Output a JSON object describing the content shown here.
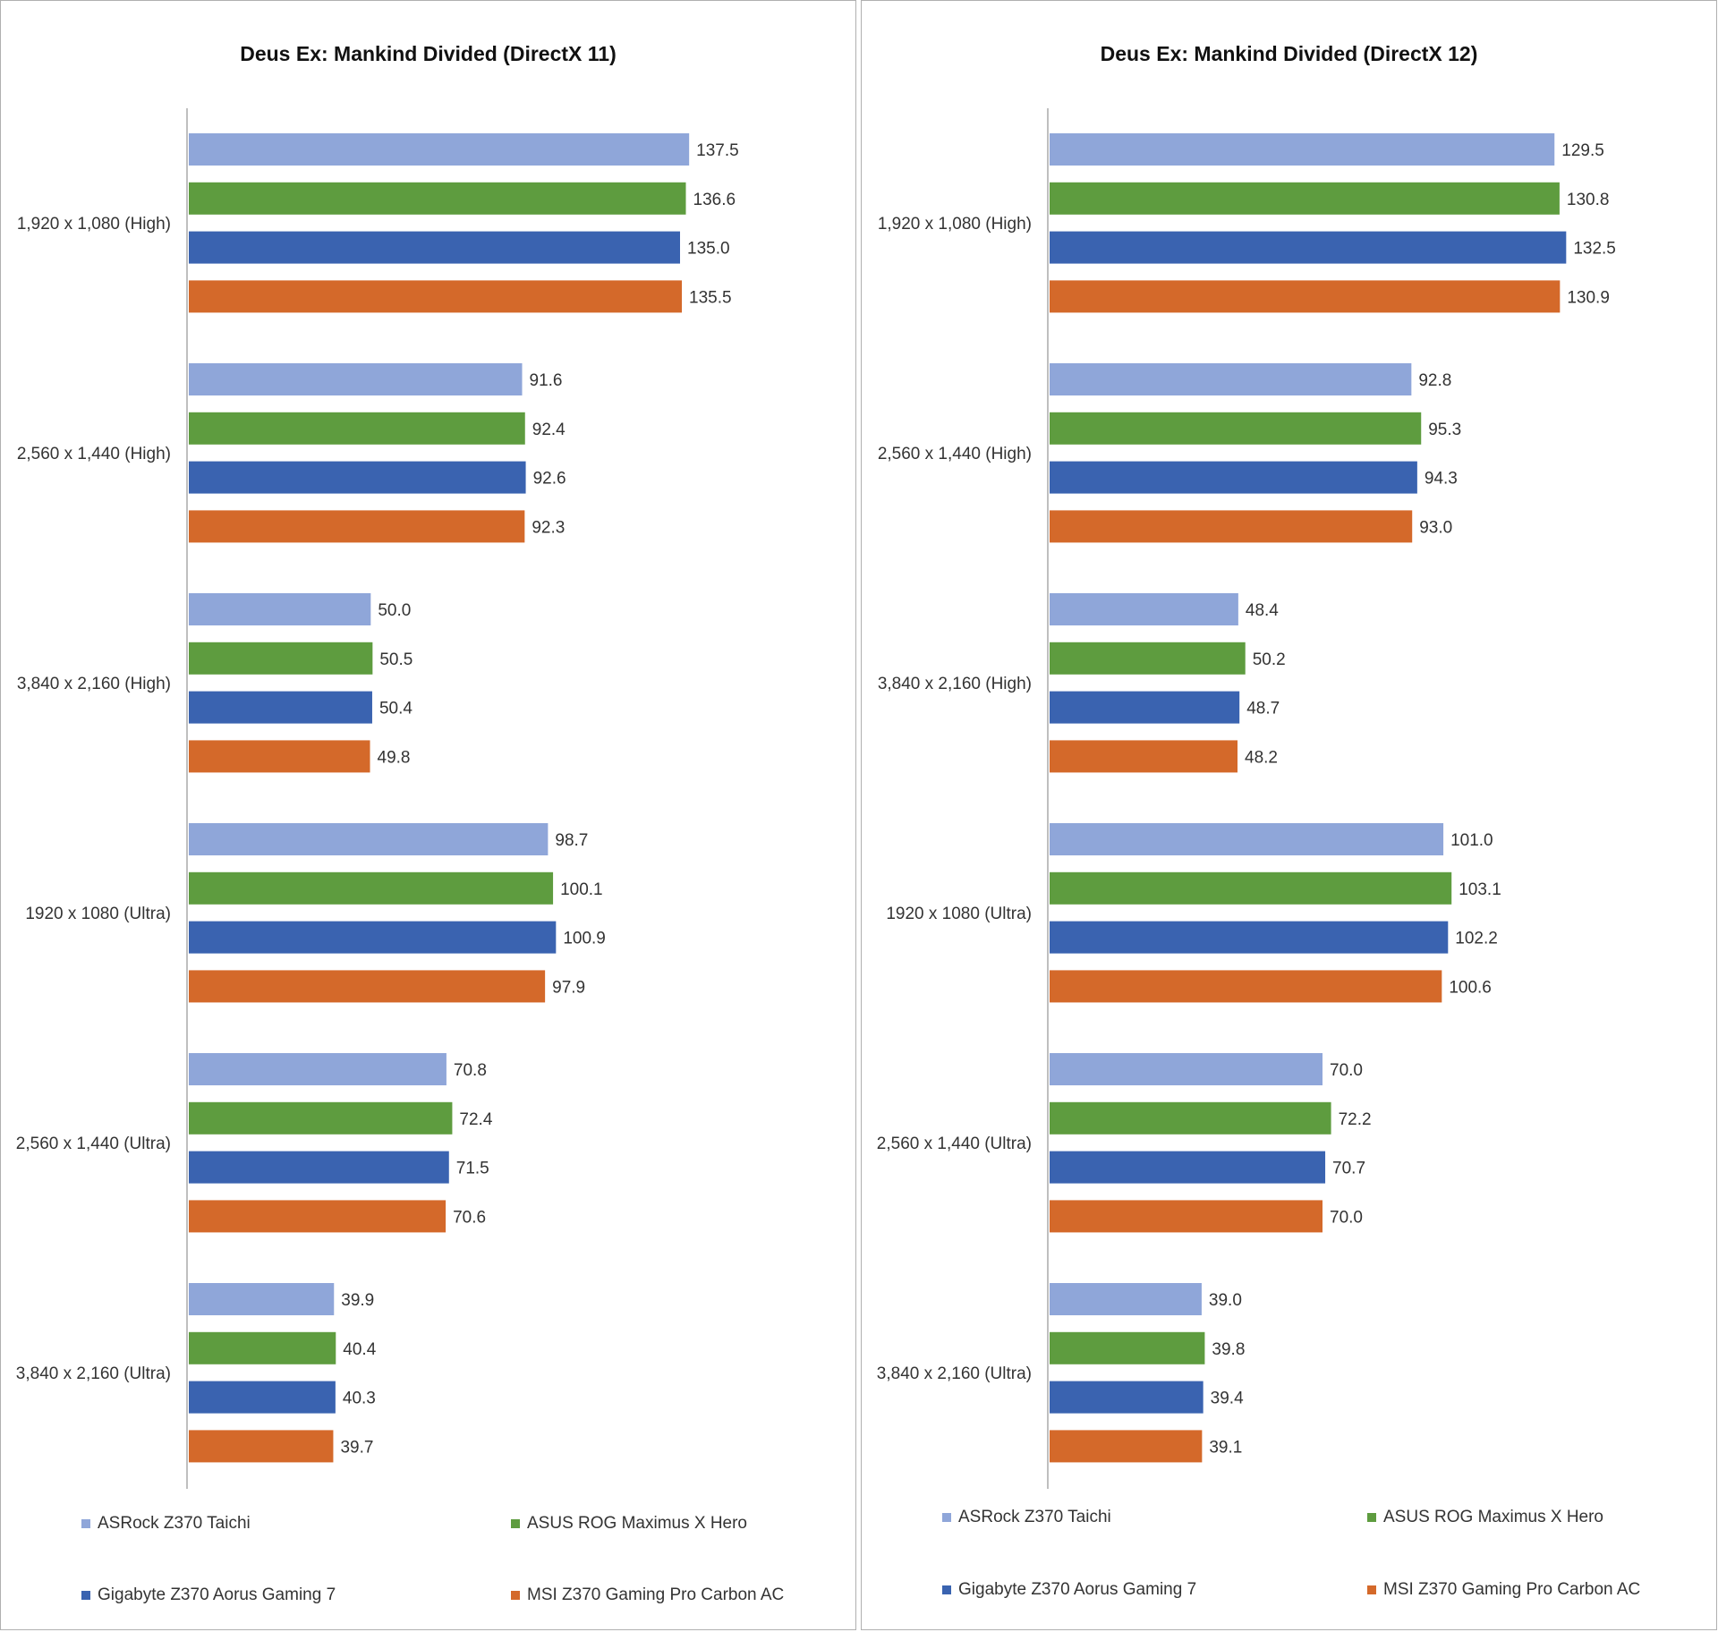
{
  "chart_data": [
    {
      "type": "bar",
      "orientation": "horizontal",
      "title": "Deus Ex: Mankind Divided (DirectX 11)",
      "categories": [
        "1,920 x 1,080 (High)",
        "2,560 x 1,440 (High)",
        "3,840 x 2,160 (High)",
        "1920 x 1080 (Ultra)",
        "2,560 x 1,440 (Ultra)",
        "3,840 x 2,160 (Ultra)"
      ],
      "series": [
        {
          "name": "ASRock Z370 Taichi",
          "color": "#8FA6D9",
          "values": [
            137.5,
            91.6,
            50.0,
            98.7,
            70.8,
            39.9
          ]
        },
        {
          "name": "ASUS ROG Maximus X Hero",
          "color": "#5E9C3F",
          "values": [
            136.6,
            92.4,
            50.5,
            100.1,
            72.4,
            40.4
          ]
        },
        {
          "name": "Gigabyte Z370 Aorus Gaming 7",
          "color": "#3A63B0",
          "values": [
            135.0,
            92.6,
            50.4,
            100.9,
            71.5,
            40.3
          ]
        },
        {
          "name": "MSI Z370 Gaming Pro Carbon AC",
          "color": "#D4692A",
          "values": [
            135.5,
            92.3,
            49.8,
            97.9,
            70.6,
            39.7
          ]
        }
      ],
      "xlim": [
        0,
        150
      ],
      "grid": false,
      "legend": "bottom"
    },
    {
      "type": "bar",
      "orientation": "horizontal",
      "title": "Deus Ex: Mankind Divided (DirectX 12)",
      "categories": [
        "1,920 x 1,080 (High)",
        "2,560 x 1,440 (High)",
        "3,840 x 2,160 (High)",
        "1920 x 1080 (Ultra)",
        "2,560 x 1,440 (Ultra)",
        "3,840 x 2,160 (Ultra)"
      ],
      "series": [
        {
          "name": "ASRock Z370 Taichi",
          "color": "#8FA6D9",
          "values": [
            129.5,
            92.8,
            48.4,
            101.0,
            70.0,
            39.0
          ]
        },
        {
          "name": "ASUS ROG Maximus X Hero",
          "color": "#5E9C3F",
          "values": [
            130.8,
            95.3,
            50.2,
            103.1,
            72.2,
            39.8
          ]
        },
        {
          "name": "Gigabyte Z370 Aorus Gaming 7",
          "color": "#3A63B0",
          "values": [
            132.5,
            94.3,
            48.7,
            102.2,
            70.7,
            39.4
          ]
        },
        {
          "name": "MSI Z370 Gaming Pro Carbon AC",
          "color": "#D4692A",
          "values": [
            130.9,
            93.0,
            48.2,
            100.6,
            70.0,
            39.1
          ]
        }
      ],
      "xlim": [
        0,
        140
      ],
      "grid": false,
      "legend": "bottom"
    }
  ]
}
